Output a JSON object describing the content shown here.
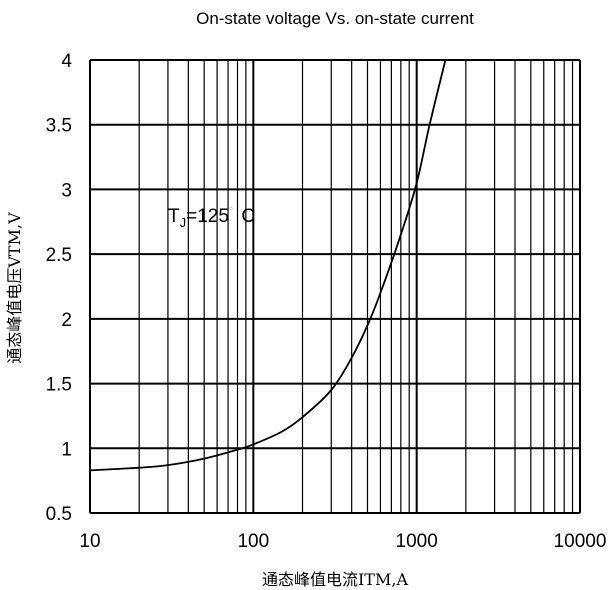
{
  "chart_data": {
    "type": "line",
    "title": "On-state voltage Vs. on-state current",
    "xlabel": "通态峰值电流ITM,A",
    "ylabel": "通态峰值电压VTM,V",
    "xscale": "log",
    "xlim": [
      10,
      10000
    ],
    "ylim": [
      0.5,
      4
    ],
    "xticks": [
      "10",
      "100",
      "1000",
      "10000"
    ],
    "yticks": [
      "0.5",
      "1",
      "1.5",
      "2",
      "2.5",
      "3",
      "3.5",
      "4"
    ],
    "grid": true,
    "annotation": {
      "text": "TJ=125°C",
      "main": "T",
      "sub": "J",
      "rest": "=125",
      "deg": "°",
      "unit": "C"
    },
    "series": [
      {
        "x": [
          10,
          20,
          30,
          50,
          80,
          100,
          150,
          200,
          300,
          400,
          500,
          600,
          800,
          1000,
          1200,
          1500
        ],
        "y": [
          0.83,
          0.85,
          0.87,
          0.92,
          0.99,
          1.03,
          1.13,
          1.24,
          1.45,
          1.7,
          1.95,
          2.2,
          2.65,
          3.05,
          3.5,
          4.0
        ]
      }
    ]
  }
}
